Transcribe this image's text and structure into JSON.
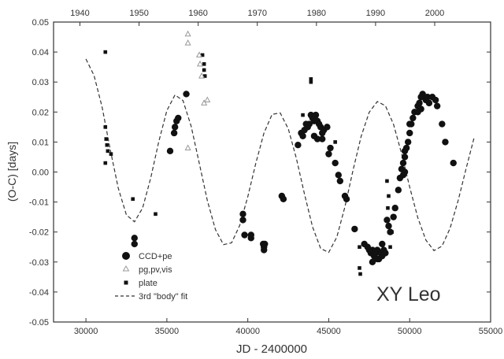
{
  "chart_data": {
    "type": "scatter",
    "annotation": "XY Leo",
    "xlabel": "JD - 2400000",
    "ylabel": "(O-C) [days]",
    "xlim": [
      28000,
      55000
    ],
    "ylim": [
      -0.05,
      0.05
    ],
    "x_ticks": [
      "30000",
      "35000",
      "40000",
      "45000",
      "50000",
      "55000"
    ],
    "y_ticks": [
      "-0.05",
      "-0.04",
      "-0.03",
      "-0.02",
      "-0.01",
      "0.00",
      "0.01",
      "0.02",
      "0.03",
      "0.04",
      "0.05"
    ],
    "top_axis_ticks": [
      "1940",
      "1950",
      "1960",
      "1970",
      "1980",
      "1990",
      "2000"
    ],
    "top_axis_jd": [
      29630,
      33283,
      36935,
      40587,
      44240,
      47893,
      51545
    ],
    "legend_position": "bottom-left",
    "grid": false,
    "colors": {
      "marker": "#111111",
      "open_triangle": "#999999",
      "fit_line": "#333333"
    },
    "series": [
      {
        "name": "CCD+pe",
        "marker": "circle",
        "points": [
          [
            33000,
            -0.022
          ],
          [
            33000,
            -0.024
          ],
          [
            35200,
            0.007
          ],
          [
            35450,
            0.013
          ],
          [
            35500,
            0.015
          ],
          [
            35600,
            0.017
          ],
          [
            35700,
            0.018
          ],
          [
            36200,
            0.026
          ],
          [
            39700,
            -0.014
          ],
          [
            39700,
            -0.016
          ],
          [
            39800,
            -0.021
          ],
          [
            40200,
            -0.021
          ],
          [
            40200,
            -0.022
          ],
          [
            40950,
            -0.024
          ],
          [
            41000,
            -0.025
          ],
          [
            41000,
            -0.026
          ],
          [
            41050,
            -0.024
          ],
          [
            42100,
            -0.008
          ],
          [
            42200,
            -0.009
          ],
          [
            43100,
            0.009
          ],
          [
            43300,
            0.013
          ],
          [
            43400,
            0.012
          ],
          [
            43500,
            0.014
          ],
          [
            43600,
            0.016
          ],
          [
            43700,
            0.015
          ],
          [
            43800,
            0.016
          ],
          [
            43900,
            0.019
          ],
          [
            44000,
            0.018
          ],
          [
            44100,
            0.017
          ],
          [
            44200,
            0.019
          ],
          [
            44300,
            0.017
          ],
          [
            44400,
            0.016
          ],
          [
            44500,
            0.015
          ],
          [
            44600,
            0.013
          ],
          [
            44700,
            0.014
          ],
          [
            44900,
            0.015
          ],
          [
            44100,
            0.012
          ],
          [
            44300,
            0.011
          ],
          [
            44600,
            0.011
          ],
          [
            45000,
            0.006
          ],
          [
            45100,
            0.008
          ],
          [
            45400,
            0.003
          ],
          [
            45600,
            -0.001
          ],
          [
            45700,
            -0.003
          ],
          [
            46000,
            -0.008
          ],
          [
            46100,
            -0.009
          ],
          [
            46600,
            -0.019
          ],
          [
            47200,
            -0.024
          ],
          [
            47400,
            -0.025
          ],
          [
            47500,
            -0.026
          ],
          [
            47600,
            -0.027
          ],
          [
            47700,
            -0.026
          ],
          [
            47800,
            -0.028
          ],
          [
            47900,
            -0.027
          ],
          [
            48000,
            -0.026
          ],
          [
            48100,
            -0.029
          ],
          [
            48200,
            -0.027
          ],
          [
            48300,
            -0.028
          ],
          [
            48400,
            -0.026
          ],
          [
            48500,
            -0.027
          ],
          [
            47700,
            -0.03
          ],
          [
            48000,
            -0.029
          ],
          [
            48300,
            -0.024
          ],
          [
            48600,
            -0.016
          ],
          [
            48700,
            -0.018
          ],
          [
            48800,
            -0.02
          ],
          [
            49000,
            -0.015
          ],
          [
            49100,
            -0.012
          ],
          [
            49300,
            -0.006
          ],
          [
            49400,
            -0.002
          ],
          [
            49500,
            0.001
          ],
          [
            49600,
            0.003
          ],
          [
            49700,
            0.005
          ],
          [
            49800,
            0.008
          ],
          [
            49900,
            0.01
          ],
          [
            50000,
            0.013
          ],
          [
            50100,
            0.016
          ],
          [
            50200,
            0.018
          ],
          [
            50300,
            0.02
          ],
          [
            50500,
            0.022
          ],
          [
            50600,
            0.023
          ],
          [
            50700,
            0.025
          ],
          [
            50800,
            0.026
          ],
          [
            50900,
            0.025
          ],
          [
            51000,
            0.024
          ],
          [
            51100,
            0.025
          ],
          [
            51200,
            0.023
          ],
          [
            51400,
            0.025
          ],
          [
            51600,
            0.024
          ],
          [
            51700,
            0.022
          ],
          [
            52000,
            0.016
          ],
          [
            52200,
            0.01
          ],
          [
            52700,
            0.003
          ],
          [
            50700,
            0.021
          ],
          [
            50500,
            0.02
          ],
          [
            49700,
            0.0
          ],
          [
            49600,
            -0.001
          ],
          [
            50000,
            0.016
          ],
          [
            49700,
            0.007
          ]
        ]
      },
      {
        "name": "pg,pv,vis",
        "marker": "triangle-open",
        "points": [
          [
            36300,
            0.046
          ],
          [
            36300,
            0.043
          ],
          [
            36300,
            0.008
          ],
          [
            37000,
            0.039
          ],
          [
            37050,
            0.036
          ],
          [
            37150,
            0.032
          ],
          [
            37500,
            0.024
          ],
          [
            37300,
            0.023
          ]
        ]
      },
      {
        "name": "plate",
        "marker": "square",
        "points": [
          [
            31200,
            0.04
          ],
          [
            31200,
            0.015
          ],
          [
            31250,
            0.011
          ],
          [
            31300,
            0.009
          ],
          [
            31350,
            0.007
          ],
          [
            31200,
            0.003
          ],
          [
            31550,
            0.006
          ],
          [
            32900,
            -0.009
          ],
          [
            34300,
            -0.014
          ],
          [
            37200,
            0.039
          ],
          [
            37300,
            0.036
          ],
          [
            37300,
            0.034
          ],
          [
            37350,
            0.032
          ],
          [
            43900,
            0.031
          ],
          [
            43900,
            0.03
          ],
          [
            43400,
            0.019
          ],
          [
            45400,
            0.01
          ],
          [
            46900,
            -0.025
          ],
          [
            46900,
            -0.032
          ],
          [
            46950,
            -0.034
          ],
          [
            48600,
            -0.003
          ],
          [
            48700,
            -0.008
          ],
          [
            48900,
            -0.02
          ],
          [
            48800,
            -0.025
          ],
          [
            48650,
            -0.012
          ]
        ]
      },
      {
        "name": "3rd \"body\" fit",
        "line_style": "dashed",
        "x": [
          30000,
          30500,
          31000,
          31500,
          32000,
          32500,
          33000,
          33500,
          34000,
          34500,
          35000,
          35500,
          36000,
          36500,
          37000,
          37500,
          38000,
          38500,
          39000,
          39500,
          40000,
          40500,
          41000,
          41500,
          42000,
          42500,
          43000,
          43500,
          44000,
          44500,
          45000,
          45500,
          46000,
          46500,
          47000,
          47500,
          48000,
          48500,
          49000,
          49500,
          50000,
          50500,
          51000,
          51500,
          52000,
          52500,
          53000,
          53500,
          54000
        ],
        "y": [
          0.0377,
          0.0322,
          0.0216,
          0.0076,
          -0.0054,
          -0.0143,
          -0.0166,
          -0.012,
          -0.0021,
          0.0101,
          0.0205,
          0.0257,
          0.0238,
          0.0153,
          0.003,
          -0.0095,
          -0.0192,
          -0.0242,
          -0.0236,
          -0.0178,
          -0.0082,
          0.003,
          0.013,
          0.0192,
          0.0197,
          0.0144,
          0.0046,
          -0.0073,
          -0.0183,
          -0.0255,
          -0.0268,
          -0.0217,
          -0.0116,
          0.0006,
          0.0119,
          0.0199,
          0.0235,
          0.0221,
          0.0159,
          0.0062,
          -0.005,
          -0.0152,
          -0.0227,
          -0.0262,
          -0.0247,
          -0.0187,
          -0.0094,
          0.0015,
          0.0118
        ]
      }
    ]
  }
}
